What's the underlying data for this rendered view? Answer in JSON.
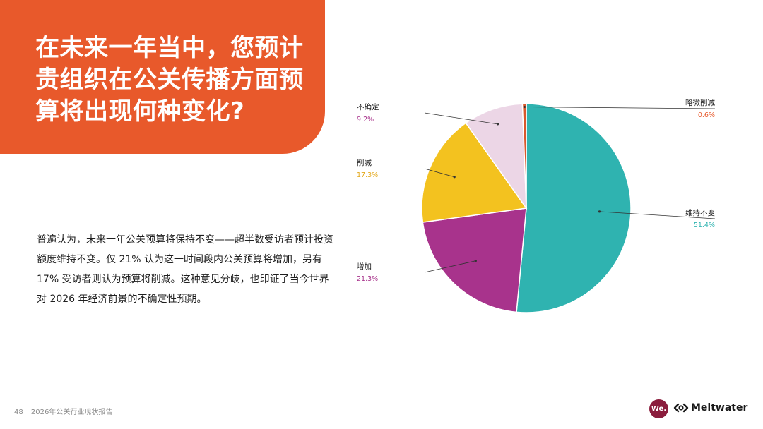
{
  "title": "在未来一年当中，您预计贵组织在公关传播方面预算将出现何种变化?",
  "body": "普遍认为，未来一年公关预算将保持不变——超半数受访者预计投资额度维持不变。仅 21% 认为这一时间段内公关预算将增加，另有 17% 受访者则认为预算将削减。这种意见分歧，也印证了当今世界对 2026 年经济前景的不确定性预期。",
  "footer": {
    "page_number": "48",
    "report_title": "2026年公关行业现状报告"
  },
  "logos": {
    "we": "We.",
    "meltwater": "Meltwater"
  },
  "colors": {
    "accent": "#e8592b",
    "text": "#1a1a1a",
    "we_logo": "#8b1d3d"
  },
  "chart_data": {
    "type": "pie",
    "start": "12 o'clock",
    "direction": "clockwise",
    "slices": [
      {
        "label": "维持不变",
        "value": 51.4,
        "display": "51.4%",
        "color": "#2fb3b0",
        "label_color": "#2fb3b0"
      },
      {
        "label": "增加",
        "value": 21.3,
        "display": "21.3%",
        "color": "#a8338c",
        "label_color": "#a8338c"
      },
      {
        "label": "削减",
        "value": 17.3,
        "display": "17.3%",
        "color": "#f3c21f",
        "label_color": "#e3a81a"
      },
      {
        "label": "不确定",
        "value": 9.2,
        "display": "9.2%",
        "color": "#ecd6e6",
        "label_color": "#a8338c"
      },
      {
        "label": "略微削减",
        "value": 0.6,
        "display": "0.6%",
        "color": "#d9582c",
        "label_color": "#e8592b"
      }
    ]
  }
}
